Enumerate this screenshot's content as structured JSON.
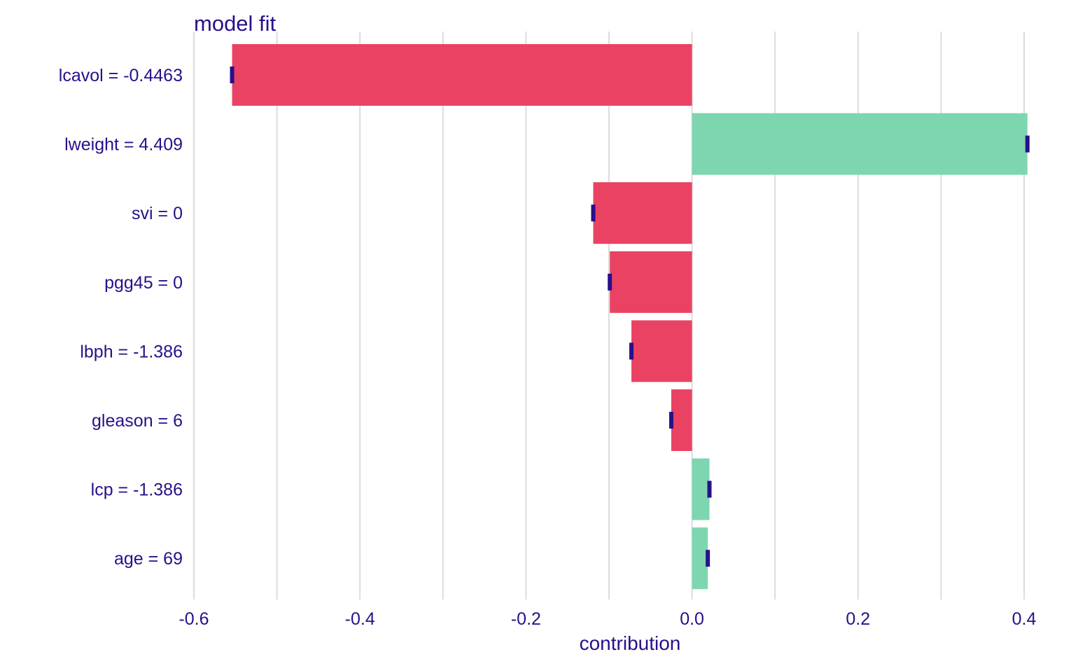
{
  "chart_data": {
    "type": "bar",
    "orientation": "horizontal",
    "title": "model  fit",
    "xlabel": "contribution",
    "ylabel": "",
    "xlim": [
      -0.6,
      0.4
    ],
    "x_ticks": [
      -0.6,
      -0.4,
      -0.2,
      0.0,
      0.2,
      0.4
    ],
    "x_tick_labels": [
      "-0.6",
      "-0.4",
      "-0.2",
      "0.0",
      "0.2",
      "0.4"
    ],
    "grid": true,
    "categories": [
      "lcavol = -0.4463",
      "lweight = 4.409",
      "svi = 0",
      "pgg45 = 0",
      "lbph = -1.386",
      "gleason = 6",
      "lcp = -1.386",
      "age = 69"
    ],
    "values": [
      -0.554,
      0.404,
      -0.119,
      -0.099,
      -0.073,
      -0.025,
      0.021,
      0.019
    ],
    "colors": {
      "positive": "#7dd6b0",
      "negative": "#ea4263",
      "marker": "#2a0f8a",
      "grid": "#dcdcdc",
      "text": "#2a0f8a"
    }
  }
}
